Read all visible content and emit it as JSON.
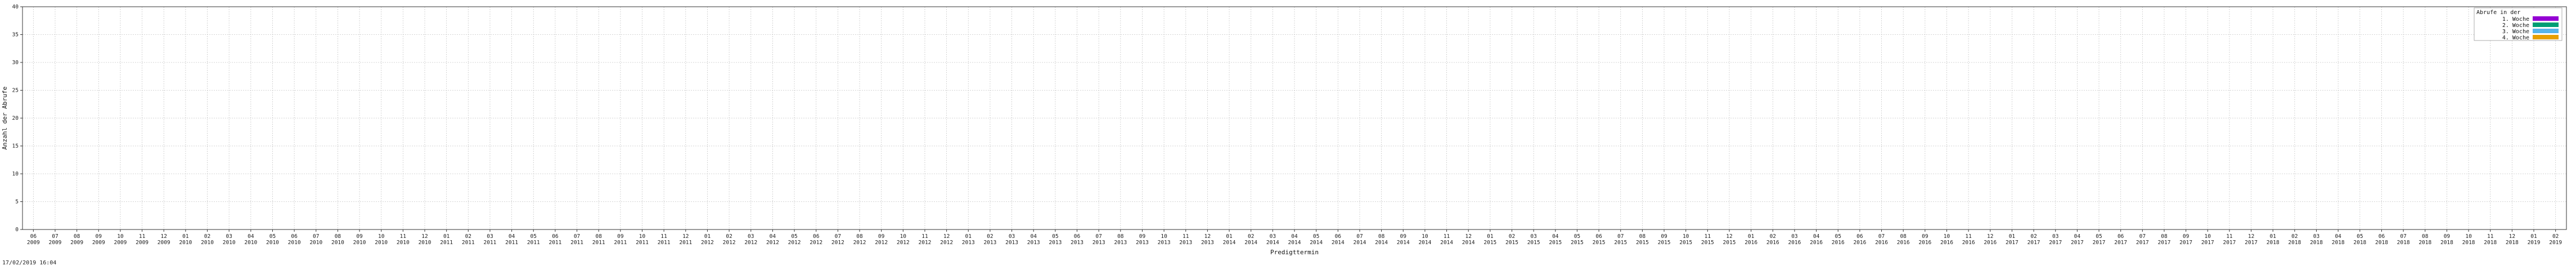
{
  "chart_data": {
    "type": "bar",
    "stacked": true,
    "title": "",
    "xlabel": "Predigttermin",
    "ylabel": "Anzahl der Abrufe",
    "ylim": [
      0,
      40
    ],
    "y_ticks": [
      0,
      5,
      10,
      15,
      20,
      25,
      30,
      35,
      40
    ],
    "grid": true,
    "legend": {
      "position": "top-right",
      "title": "Abrufe in der",
      "entries": [
        "1. Woche",
        "2. Woche",
        "3. Woche",
        "4. Woche"
      ]
    },
    "series": [
      {
        "name": "1. Woche",
        "color": "#9400d3"
      },
      {
        "name": "2. Woche",
        "color": "#009e73"
      },
      {
        "name": "3. Woche",
        "color": "#56b4e9"
      },
      {
        "name": "4. Woche",
        "color": "#e69f00"
      }
    ],
    "x_tick_labels": [
      "06\n2009",
      "07\n2009",
      "08\n2009",
      "09\n2009",
      "10\n2009",
      "11\n2009",
      "12\n2009",
      "01\n2010",
      "02\n2010",
      "03\n2010",
      "04\n2010",
      "05\n2010",
      "06\n2010",
      "07\n2010",
      "08\n2010",
      "09\n2010",
      "10\n2010",
      "11\n2010",
      "12\n2010",
      "01\n2011",
      "02\n2011",
      "03\n2011",
      "04\n2011",
      "05\n2011",
      "06\n2011",
      "07\n2011",
      "08\n2011",
      "09\n2011",
      "10\n2011",
      "11\n2011",
      "12\n2011",
      "01\n2012",
      "02\n2012",
      "03\n2012",
      "04\n2012",
      "05\n2012",
      "06\n2012",
      "07\n2012",
      "08\n2012",
      "09\n2012",
      "10\n2012",
      "11\n2012",
      "12\n2012",
      "01\n2013",
      "02\n2013",
      "03\n2013",
      "04\n2013",
      "05\n2013",
      "06\n2013",
      "07\n2013",
      "08\n2013",
      "09\n2013",
      "10\n2013",
      "11\n2013",
      "12\n2013",
      "01\n2014",
      "02\n2014",
      "03\n2014",
      "04\n2014",
      "05\n2014",
      "06\n2014",
      "07\n2014",
      "08\n2014",
      "09\n2014",
      "10\n2014",
      "11\n2014",
      "12\n2014",
      "01\n2015",
      "02\n2015",
      "03\n2015",
      "04\n2015",
      "05\n2015",
      "06\n2015",
      "07\n2015",
      "08\n2015",
      "09\n2015",
      "10\n2015",
      "11\n2015",
      "12\n2015",
      "01\n2016",
      "02\n2016",
      "03\n2016",
      "04\n2016",
      "05\n2016",
      "06\n2016",
      "07\n2016",
      "08\n2016",
      "09\n2016",
      "10\n2016",
      "11\n2016",
      "12\n2016",
      "01\n2017",
      "02\n2017",
      "03\n2017",
      "04\n2017",
      "05\n2017",
      "06\n2017",
      "07\n2017",
      "08\n2017",
      "09\n2017",
      "10\n2017",
      "11\n2017",
      "12\n2017",
      "01\n2018",
      "02\n2018",
      "03\n2018",
      "04\n2018",
      "05\n2018",
      "06\n2018",
      "07\n2018",
      "08\n2018",
      "09\n2018",
      "10\n2018",
      "11\n2018",
      "12\n2018",
      "01\n2019",
      "02\n2019"
    ]
  },
  "footer": {
    "timestamp": "17/02/2019 16:04"
  }
}
